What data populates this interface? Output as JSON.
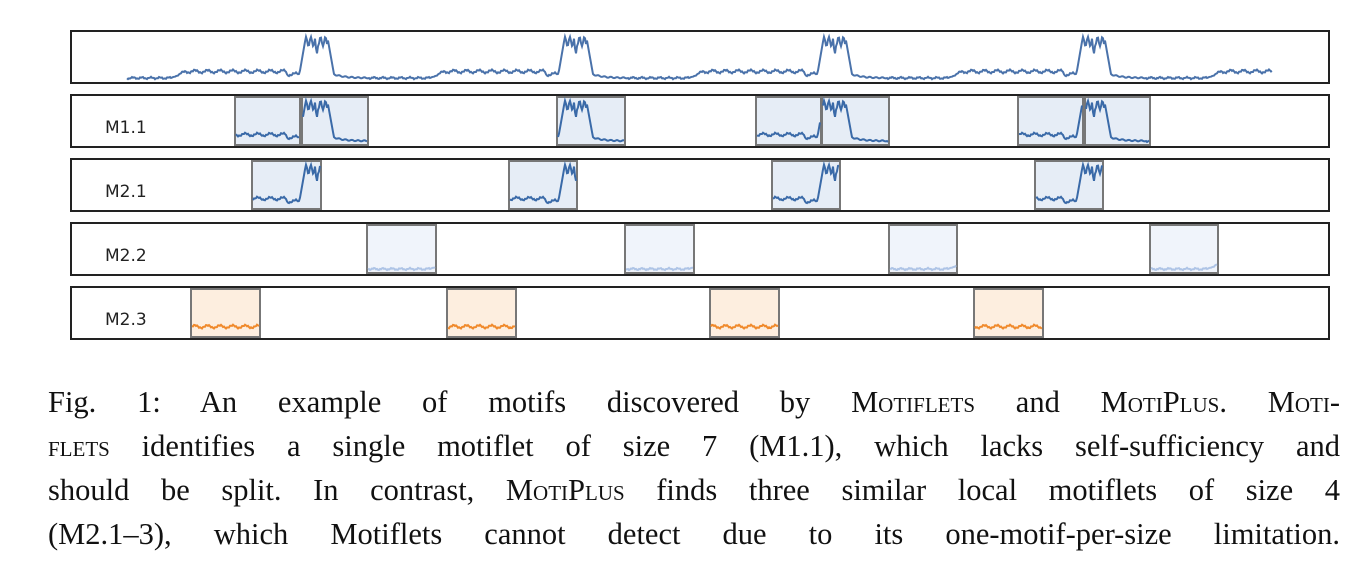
{
  "figure": {
    "rows": [
      {
        "label": "M1.1"
      },
      {
        "label": "M2.1"
      },
      {
        "label": "M2.2"
      },
      {
        "label": "M2.3"
      }
    ]
  },
  "caption": {
    "lines": [
      [
        {
          "text": "Fig. 1: An example of motifs discovered by "
        },
        {
          "text": "Motiflets",
          "small_caps": true
        },
        {
          "text": " and "
        },
        {
          "text": "MotiPlus",
          "small_caps": true
        },
        {
          "text": ". "
        },
        {
          "text": "Moti-",
          "small_caps": true
        }
      ],
      [
        {
          "text": "flets",
          "small_caps": true
        },
        {
          "text": " identifies a single motiflet of size 7 (M1.1), which lacks self-sufficiency and"
        }
      ],
      [
        {
          "text": "should be split. In contrast, "
        },
        {
          "text": "MotiPlus",
          "small_caps": true
        },
        {
          "text": " finds three similar local motiflets of size 4"
        }
      ],
      [
        {
          "text": "(M2.1–3), which Motiflets cannot detect due to its one-motif-per-size limitation."
        }
      ]
    ]
  }
}
